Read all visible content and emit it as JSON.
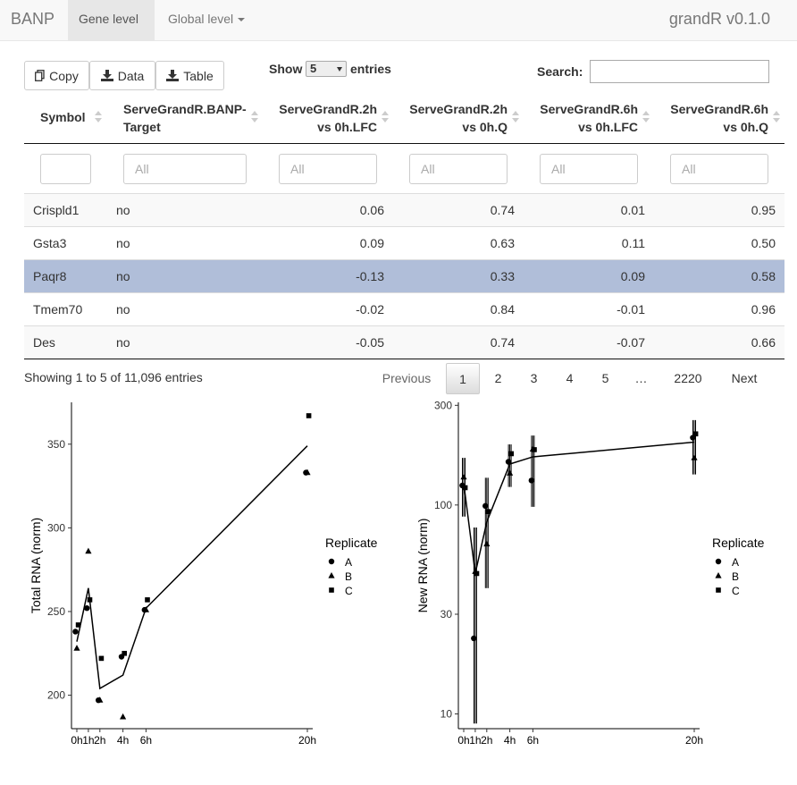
{
  "navbar": {
    "brand": "BANP",
    "tabs": [
      {
        "label": "Gene level"
      },
      {
        "label": "Global level"
      }
    ],
    "app_title": "grandR v0.1.0"
  },
  "toolbar": {
    "copy_label": "Copy",
    "data_label": "Data",
    "table_label": "Table"
  },
  "length": {
    "show_label": "Show",
    "value": "5",
    "entries_label": "entries"
  },
  "search": {
    "label": "Search:",
    "value": ""
  },
  "table": {
    "columns": [
      {
        "line1": "Symbol",
        "line2": ""
      },
      {
        "line1": "ServeGrandR.BANP-",
        "line2": "Target"
      },
      {
        "line1": "ServeGrandR.2h",
        "line2": "vs 0h.LFC"
      },
      {
        "line1": "ServeGrandR.2h",
        "line2": "vs 0h.Q"
      },
      {
        "line1": "ServeGrandR.6h",
        "line2": "vs 0h.LFC"
      },
      {
        "line1": "ServeGrandR.6h",
        "line2": "vs 0h.Q"
      }
    ],
    "filter_placeholder": "All",
    "rows": [
      {
        "symbol": "Crispld1",
        "target": "no",
        "lfc2": "0.06",
        "q2": "0.74",
        "lfc6": "0.01",
        "q6": "0.95"
      },
      {
        "symbol": "Gsta3",
        "target": "no",
        "lfc2": "0.09",
        "q2": "0.63",
        "lfc6": "0.11",
        "q6": "0.50"
      },
      {
        "symbol": "Paqr8",
        "target": "no",
        "lfc2": "-0.13",
        "q2": "0.33",
        "lfc6": "0.09",
        "q6": "0.58"
      },
      {
        "symbol": "Tmem70",
        "target": "no",
        "lfc2": "-0.02",
        "q2": "0.84",
        "lfc6": "-0.01",
        "q6": "0.96"
      },
      {
        "symbol": "Des",
        "target": "no",
        "lfc2": "-0.05",
        "q2": "0.74",
        "lfc6": "-0.07",
        "q6": "0.66"
      }
    ],
    "selected_row": "Paqr8"
  },
  "footer": {
    "info": "Showing 1 to 5 of 11,096 entries",
    "previous": "Previous",
    "pages": [
      "1",
      "2",
      "3",
      "4",
      "5",
      "…",
      "2220"
    ],
    "current_page": "1",
    "next": "Next"
  },
  "chart_data": [
    {
      "type": "scatter",
      "title": "",
      "xlabel": "",
      "ylabel": "Total RNA (norm)",
      "x_ticks": [
        0,
        1,
        2,
        4,
        6,
        20
      ],
      "x_tick_labels": [
        "0h",
        "1h",
        "2h",
        "4h",
        "6h",
        "20h"
      ],
      "y_ticks": [
        200,
        250,
        300,
        350
      ],
      "ylim": [
        180,
        375
      ],
      "legend": {
        "title": "Replicate",
        "entries": [
          "A",
          "B",
          "C"
        ],
        "shapes": [
          "circle",
          "triangle",
          "square"
        ],
        "position": "right"
      },
      "series": [
        {
          "name": "A",
          "points": [
            [
              0,
              238
            ],
            [
              1,
              252
            ],
            [
              2,
              197
            ],
            [
              4,
              223
            ],
            [
              6,
              251
            ],
            [
              20,
              333
            ]
          ]
        },
        {
          "name": "B",
          "points": [
            [
              0,
              228
            ],
            [
              1,
              286
            ],
            [
              2,
              197
            ],
            [
              4,
              187
            ],
            [
              6,
              251
            ],
            [
              20,
              333
            ]
          ]
        },
        {
          "name": "C",
          "points": [
            [
              0,
              242
            ],
            [
              1,
              257
            ],
            [
              2,
              222
            ],
            [
              4,
              225
            ],
            [
              6,
              257
            ],
            [
              20,
              367
            ]
          ]
        }
      ],
      "mean_line": [
        [
          0,
          232
        ],
        [
          1,
          264
        ],
        [
          2,
          204
        ],
        [
          4,
          212
        ],
        [
          6,
          252
        ],
        [
          20,
          349
        ]
      ]
    },
    {
      "type": "scatter",
      "title": "",
      "xlabel": "",
      "ylabel": "New RNA (norm)",
      "y_scale": "log",
      "x_ticks": [
        0,
        1,
        2,
        4,
        6,
        20
      ],
      "x_tick_labels": [
        "0h",
        "1h",
        "2h",
        "4h",
        "6h",
        "20h"
      ],
      "y_ticks": [
        10,
        30,
        100,
        300
      ],
      "ylim": [
        8.5,
        310
      ],
      "legend": {
        "title": "Replicate",
        "entries": [
          "A",
          "B",
          "C"
        ],
        "shapes": [
          "circle",
          "triangle",
          "square"
        ],
        "position": "right"
      },
      "series": [
        {
          "name": "A",
          "points": [
            [
              0,
              124
            ],
            [
              1,
              23
            ],
            [
              2,
              99
            ],
            [
              4,
              161
            ],
            [
              6,
              131
            ],
            [
              20,
              210
            ]
          ]
        },
        {
          "name": "B",
          "points": [
            [
              0,
              136
            ],
            [
              1,
              48
            ],
            [
              2,
              65
            ],
            [
              4,
              142
            ],
            [
              6,
              185
            ],
            [
              20,
              168
            ]
          ]
        },
        {
          "name": "C",
          "points": [
            [
              0,
              121
            ],
            [
              1,
              47
            ],
            [
              2,
              93
            ],
            [
              4,
              176
            ],
            [
              6,
              184
            ],
            [
              20,
              219
            ]
          ]
        }
      ],
      "error_bars": [
        {
          "x": 0,
          "lo": 88,
          "hi": 168
        },
        {
          "x": 1,
          "lo": 9,
          "hi": 78
        },
        {
          "x": 2,
          "lo": 40,
          "hi": 135
        },
        {
          "x": 4,
          "lo": 122,
          "hi": 195
        },
        {
          "x": 6,
          "lo": 98,
          "hi": 215
        },
        {
          "x": 20,
          "lo": 140,
          "hi": 255
        }
      ],
      "mean_line": [
        [
          0,
          127
        ],
        [
          1,
          47
        ],
        [
          2,
          83
        ],
        [
          4,
          157
        ],
        [
          6,
          170
        ],
        [
          20,
          200
        ]
      ]
    }
  ]
}
